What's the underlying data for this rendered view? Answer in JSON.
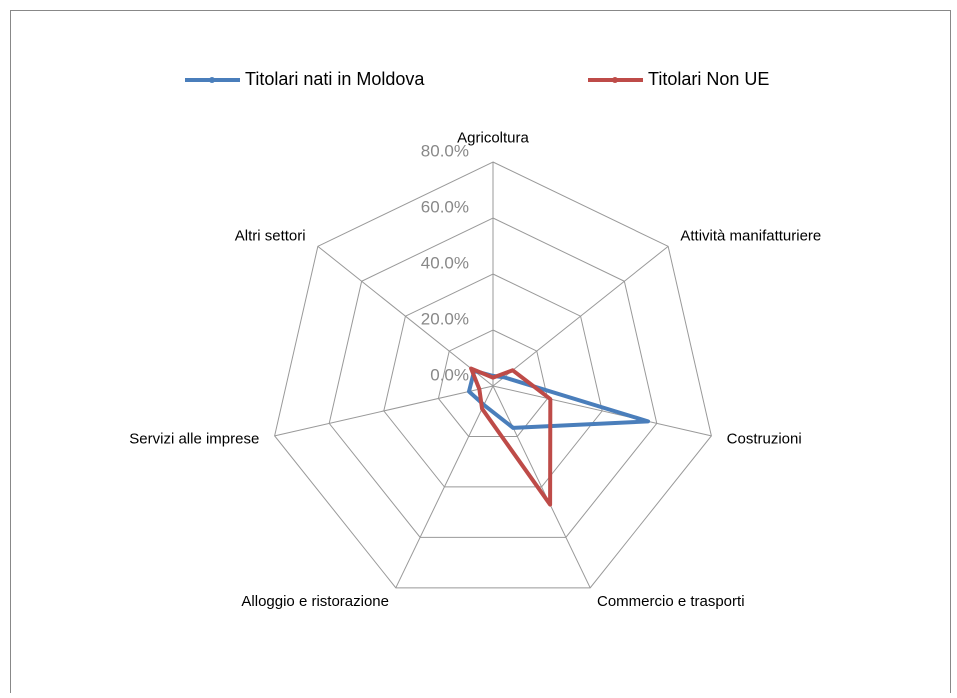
{
  "chart_data": {
    "type": "radar",
    "categories": [
      "Agricoltura",
      "Attività manifatturiere",
      "Costruzioni",
      "Commercio e trasporti",
      "Alloggio e ristorazione",
      "Servizi alle imprese",
      "Altri settori"
    ],
    "series": [
      {
        "name": "Titolari nati in Moldova",
        "color": "#4a7ebb",
        "values": [
          3.6,
          5,
          56.8,
          16.6,
          7.5,
          8.8,
          8.6
        ]
      },
      {
        "name": "Titolari Non UE",
        "color": "#be4b48",
        "values": [
          3,
          9,
          21,
          47,
          9,
          5,
          10
        ]
      }
    ],
    "ylim": [
      0,
      80
    ],
    "yticks": [
      {
        "value": 0,
        "label": "0.0%"
      },
      {
        "value": 20,
        "label": "20.0%"
      },
      {
        "value": 40,
        "label": "40.0%"
      },
      {
        "value": 60,
        "label": "60.0%"
      },
      {
        "value": 80,
        "label": "80.0%"
      }
    ],
    "grid": true,
    "legend": "top"
  }
}
